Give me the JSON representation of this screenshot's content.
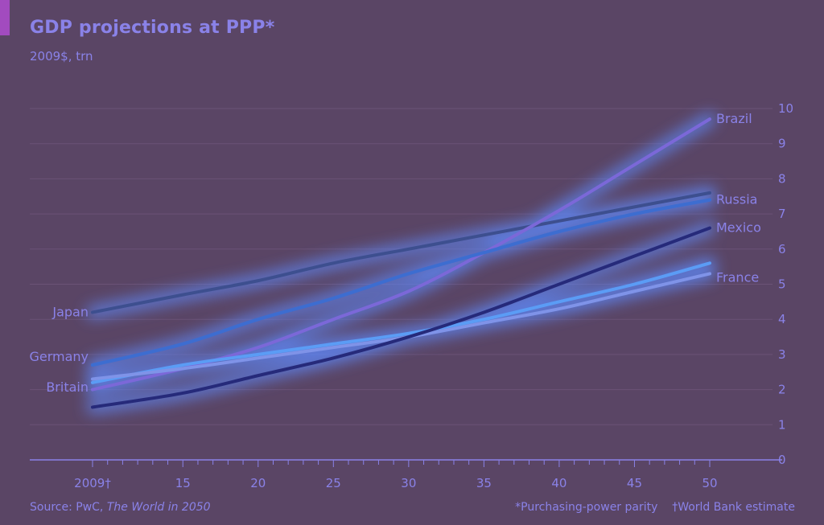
{
  "header": {
    "title": "GDP projections at PPP*",
    "subtitle": "2009$, trn"
  },
  "footer": {
    "source_prefix": "Source: PwC, ",
    "source_italic": "The World in 2050",
    "notes": "*Purchasing-power parity    †World Bank estimate"
  },
  "colors": {
    "background": "#5a4565",
    "text": "#8a82e8",
    "grid": "#6a5276",
    "axis": "#8a82e8",
    "glow": "#5f8bff"
  },
  "chart_data": {
    "type": "line",
    "title": "GDP projections at PPP*",
    "subtitle": "2009$, trn",
    "xlabel": "",
    "ylabel": "",
    "xlim": [
      2009,
      2050
    ],
    "ylim": [
      0,
      10
    ],
    "x_ticks": [
      2009,
      2015,
      2020,
      2025,
      2030,
      2035,
      2040,
      2045,
      2050
    ],
    "x_tick_labels": [
      "2009†",
      "15",
      "20",
      "25",
      "30",
      "35",
      "40",
      "45",
      "50"
    ],
    "y_ticks": [
      0,
      1,
      2,
      3,
      4,
      5,
      6,
      7,
      8,
      9,
      10
    ],
    "y_axis_side": "right",
    "grid": true,
    "legend": "direct labels at line ends",
    "series": [
      {
        "name": "Japan",
        "label_at": "start",
        "color": "#3d4f8f",
        "x": [
          2009,
          2015,
          2020,
          2025,
          2030,
          2035,
          2040,
          2045,
          2050
        ],
        "y": [
          4.2,
          4.7,
          5.1,
          5.6,
          6.0,
          6.4,
          6.8,
          7.2,
          7.6
        ]
      },
      {
        "name": "Germany",
        "label_at": "start",
        "color": "#3a6fd6",
        "x": [
          2009,
          2015,
          2020,
          2025,
          2030,
          2035,
          2040,
          2045,
          2050
        ],
        "y": [
          2.7,
          3.3,
          4.0,
          4.6,
          5.3,
          5.9,
          6.5,
          7.0,
          7.4
        ]
      },
      {
        "name": "Brazil",
        "label_at": "end",
        "color": "#7b68d8",
        "x": [
          2009,
          2015,
          2020,
          2025,
          2030,
          2035,
          2040,
          2045,
          2050
        ],
        "y": [
          2.0,
          2.6,
          3.2,
          4.0,
          4.8,
          5.9,
          7.1,
          8.4,
          9.7
        ]
      },
      {
        "name": "Britain",
        "label_at": "start",
        "color": "#5b9cf5",
        "x": [
          2009,
          2015,
          2020,
          2025,
          2030,
          2035,
          2040,
          2045,
          2050
        ],
        "y": [
          2.2,
          2.7,
          3.0,
          3.3,
          3.6,
          4.0,
          4.5,
          5.0,
          5.6
        ]
      },
      {
        "name": "France",
        "label_at": "end",
        "color": "#7f93e8",
        "x": [
          2009,
          2015,
          2020,
          2025,
          2030,
          2035,
          2040,
          2045,
          2050
        ],
        "y": [
          2.3,
          2.6,
          2.9,
          3.2,
          3.5,
          3.9,
          4.3,
          4.8,
          5.3
        ]
      },
      {
        "name": "Mexico",
        "label_at": "end",
        "color": "#262a7a",
        "x": [
          2009,
          2015,
          2020,
          2025,
          2030,
          2035,
          2040,
          2045,
          2050
        ],
        "y": [
          1.5,
          1.9,
          2.4,
          2.9,
          3.5,
          4.2,
          5.0,
          5.8,
          6.6
        ]
      },
      {
        "name": "Russia",
        "label_at": "end",
        "color": "#3d6dd0",
        "x": [
          2009,
          2015,
          2020,
          2025,
          2030,
          2035,
          2040,
          2045,
          2050
        ],
        "y": [
          2.7,
          3.3,
          4.0,
          4.6,
          5.3,
          5.9,
          6.5,
          7.0,
          7.4
        ]
      }
    ]
  }
}
